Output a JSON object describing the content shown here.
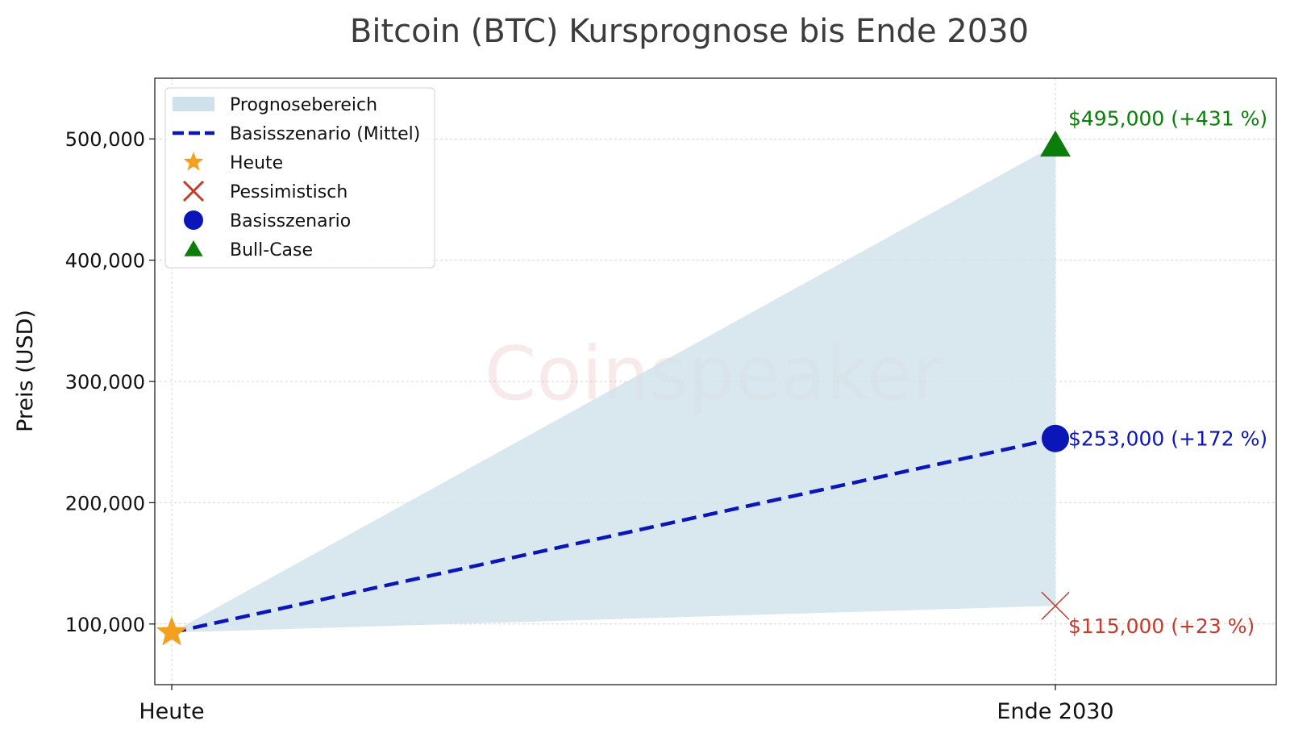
{
  "chart_data": {
    "type": "line",
    "title": "Bitcoin (BTC) Kursprognose bis Ende 2030",
    "xlabel": "",
    "ylabel": "Preis (USD)",
    "categories": [
      "Heute",
      "Ende 2030"
    ],
    "ylim": [
      50000,
      550000
    ],
    "yticks": [
      100000,
      200000,
      300000,
      400000,
      500000
    ],
    "ytick_labels": [
      "100,000",
      "200,000",
      "300,000",
      "400,000",
      "500,000"
    ],
    "grid": true,
    "watermark": "Coinspeaker",
    "legend": {
      "position": "top-left",
      "entries": [
        {
          "label": "Prognosebereich",
          "marker": "area",
          "color": "#cfe1ea"
        },
        {
          "label": "Basisszenario (Mittel)",
          "marker": "dashed-line",
          "color": "#0b16b8"
        },
        {
          "label": "Heute",
          "marker": "star",
          "color": "#f3a01f"
        },
        {
          "label": "Pessimistisch",
          "marker": "x",
          "color": "#c23b2d"
        },
        {
          "label": "Basisszenario",
          "marker": "circle",
          "color": "#0b16b8"
        },
        {
          "label": "Bull-Case",
          "marker": "triangle",
          "color": "#0a7d0a"
        }
      ]
    },
    "today_value": 93000,
    "forecast_band": {
      "x": [
        "Heute",
        "Ende 2030"
      ],
      "lower": [
        93000,
        115000
      ],
      "upper": [
        93000,
        495000
      ],
      "color": "#cfe1ea"
    },
    "series": [
      {
        "name": "Basisszenario (Mittel)",
        "x": [
          "Heute",
          "Ende 2030"
        ],
        "values": [
          93000,
          253000
        ],
        "color": "#0b16b8",
        "style": "dashed"
      }
    ],
    "points": [
      {
        "name": "Heute",
        "x": "Heute",
        "y": 93000,
        "marker": "star",
        "color": "#f3a01f",
        "label": ""
      },
      {
        "name": "Pessimistisch",
        "x": "Ende 2030",
        "y": 115000,
        "marker": "x",
        "color": "#c23b2d",
        "label": "$115,000 (+23 %)"
      },
      {
        "name": "Basisszenario",
        "x": "Ende 2030",
        "y": 253000,
        "marker": "circle",
        "color": "#0b16b8",
        "label": "$253,000 (+172 %)"
      },
      {
        "name": "Bull-Case",
        "x": "Ende 2030",
        "y": 495000,
        "marker": "triangle",
        "color": "#0a7d0a",
        "label": "$495,000 (+431 %)"
      }
    ]
  }
}
